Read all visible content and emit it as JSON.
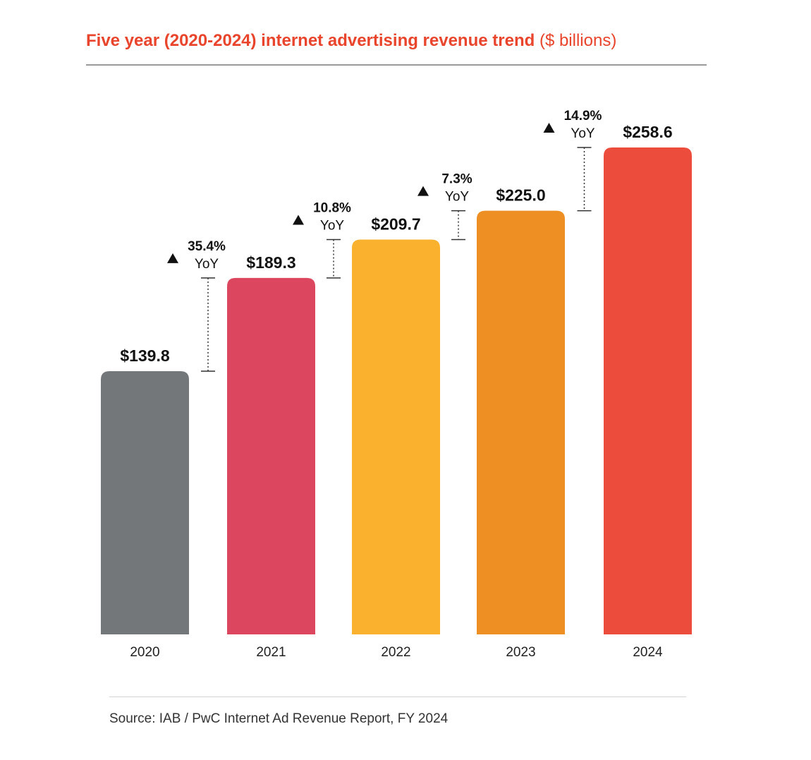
{
  "title": {
    "main": "Five year (2020-2024) internet advertising revenue trend",
    "unit": "($ billions)"
  },
  "source": {
    "label": "Source:",
    "text": "IAB / PwC Internet Ad Revenue Report, FY 2024"
  },
  "chart_data": {
    "type": "bar",
    "title": "Five year (2020-2024) internet advertising revenue trend ($ billions)",
    "categories": [
      "2020",
      "2021",
      "2022",
      "2023",
      "2024"
    ],
    "values": [
      139.8,
      189.3,
      209.7,
      225.0,
      258.6
    ],
    "value_labels": [
      "$139.8",
      "$189.3",
      "$209.7",
      "$225.0",
      "$258.6"
    ],
    "colors": [
      "#747779",
      "#dc465f",
      "#f9b12e",
      "#ee8f24",
      "#ec4c3c"
    ],
    "yoy": [
      {
        "from": "2020",
        "to": "2021",
        "pct": "35.4%",
        "label": "YoY"
      },
      {
        "from": "2021",
        "to": "2022",
        "pct": "10.8%",
        "label": "YoY"
      },
      {
        "from": "2022",
        "to": "2023",
        "pct": "7.3%",
        "label": "YoY"
      },
      {
        "from": "2023",
        "to": "2024",
        "pct": "14.9%",
        "label": "YoY"
      }
    ],
    "xlabel": "",
    "ylabel": "",
    "ylim": [
      0,
      258.6
    ],
    "grid": false,
    "legend": "none"
  }
}
